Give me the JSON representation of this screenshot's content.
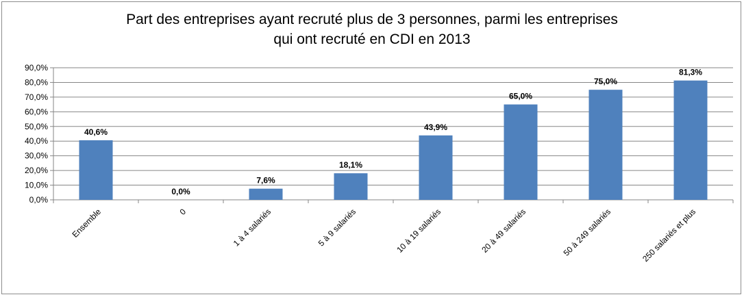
{
  "chart_data": {
    "type": "bar",
    "title": "Part des entreprises ayant recruté plus de 3 personnes, parmi les entreprises qui ont recruté en CDI en 2013",
    "title_lines": [
      "Part des entreprises ayant recruté plus de 3 personnes, parmi les entreprises",
      "qui ont recruté en CDI en 2013"
    ],
    "categories": [
      "Ensemble",
      "0",
      "1 à 4 salariés",
      "5 à 9 salariés",
      "10 à 19 salariés",
      "20 à 49 salariés",
      "50 à 249 salariés",
      "250 salariés et plus"
    ],
    "values": [
      40.6,
      0.0,
      7.6,
      18.1,
      43.9,
      65.0,
      75.0,
      81.3
    ],
    "data_labels": [
      "40,6%",
      "0,0%",
      "7,6%",
      "18,1%",
      "43,9%",
      "65,0%",
      "75,0%",
      "81,3%"
    ],
    "y_ticks": [
      "0,0%",
      "10,0%",
      "20,0%",
      "30,0%",
      "40,0%",
      "50,0%",
      "60,0%",
      "70,0%",
      "80,0%",
      "90,0%"
    ],
    "ylim": [
      0,
      90
    ],
    "xlabel": "",
    "ylabel": "",
    "grid": true,
    "legend": "none",
    "bar_color": "#4f81bd",
    "grid_color": "#868686"
  }
}
